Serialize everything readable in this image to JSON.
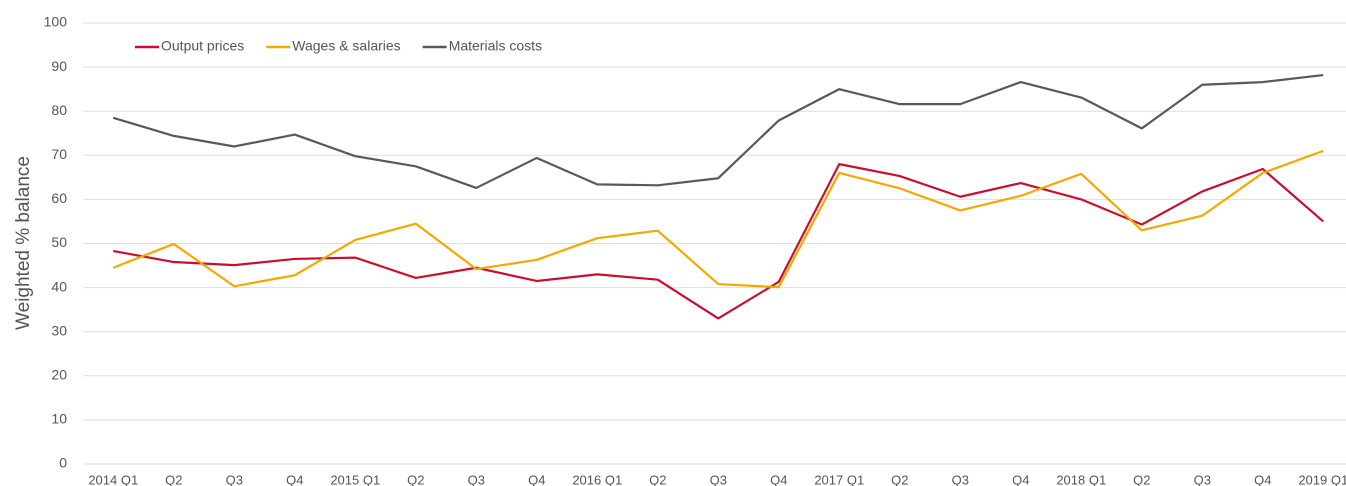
{
  "chart_data": {
    "type": "line",
    "categories": [
      "2014 Q1",
      "Q2",
      "Q3",
      "Q4",
      "2015 Q1",
      "Q2",
      "Q3",
      "Q4",
      "2016 Q1",
      "Q2",
      "Q3",
      "Q4",
      "2017 Q1",
      "Q2",
      "Q3",
      "Q4",
      "2018 Q1",
      "Q2",
      "Q3",
      "Q4",
      "2019 Q1"
    ],
    "series": [
      {
        "name": "Output prices",
        "color": "#c8102e",
        "values": [
          48.3,
          45.8,
          45.1,
          46.5,
          46.8,
          42.2,
          44.5,
          41.5,
          43.0,
          41.8,
          33.0,
          41.3,
          68.0,
          65.3,
          60.6,
          63.7,
          60.0,
          54.3,
          61.8,
          66.9,
          55.0
        ]
      },
      {
        "name": "Wages & salaries",
        "color": "#f5a800",
        "values": [
          44.5,
          49.9,
          40.3,
          42.8,
          50.8,
          54.5,
          44.2,
          46.3,
          51.2,
          52.9,
          40.8,
          40.1,
          66.0,
          62.5,
          57.5,
          60.8,
          65.8,
          53.0,
          56.3,
          66.0,
          71.0
        ]
      },
      {
        "name": "Materials costs",
        "color": "#595959",
        "values": [
          78.5,
          74.4,
          72.0,
          74.7,
          69.8,
          67.5,
          62.6,
          69.4,
          63.4,
          63.2,
          64.8,
          77.9,
          85.0,
          81.6,
          81.6,
          86.6,
          83.1,
          76.1,
          86.0,
          86.6,
          88.2
        ]
      }
    ],
    "y_label": "Weighted % balance",
    "ylim": [
      0,
      100
    ],
    "yticks": [
      0,
      10,
      20,
      30,
      40,
      50,
      60,
      70,
      80,
      90,
      100
    ],
    "grid": true,
    "legend": "top-left"
  }
}
